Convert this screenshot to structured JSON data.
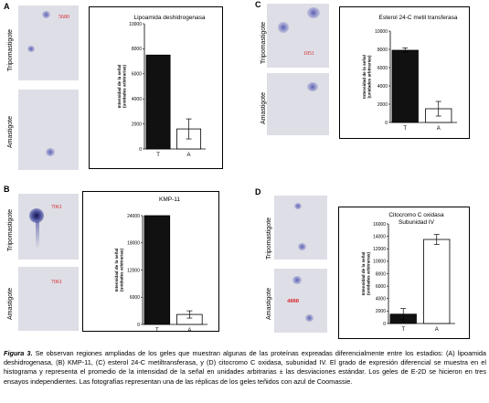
{
  "figure": {
    "caption_label": "Figura 3.",
    "caption_text": "Se observan regiones ampliadas de los geles que muestran algunas de las proteínas expreadas diferencialmente entre los estadios: (A) lipoamida deshidrogenasa, (B) KMP-11, (C) esterol 24-C metiltransferasa, y (D) citocromo C oxidasa, subunidad IV. El grado de expresión diferencial se muestra en el histograma y representa el promedio de la intensidad de la señal en unidades arbitrarias ± las desviaciones estándar. Los geles de E-2D se hicieron en tres ensayos independientes. Las fotografías representan una de las réplicas de los geles teñidos con azul de Coomassie."
  },
  "row_labels": {
    "tripo": "Tripomastigote",
    "ama": "Amastigote"
  },
  "panels": [
    {
      "letter": "A",
      "gel_top_number": "5680",
      "gel_bottom_number": ""
    },
    {
      "letter": "B",
      "gel_top_number": "7061",
      "gel_bottom_number": "7061"
    },
    {
      "letter": "C",
      "gel_top_number": "1851",
      "gel_bottom_number": ""
    },
    {
      "letter": "D",
      "gel_top_number": "",
      "gel_bottom_number": "4888"
    }
  ],
  "chart_data": [
    {
      "type": "bar",
      "title": "Lipoamida deshidrogenasa",
      "ylabel": "Intensidad de la señal (unidades arbitrarias)",
      "categories": [
        "T",
        "A"
      ],
      "values": [
        7500,
        1600
      ],
      "error": [
        0,
        800
      ],
      "ylim": [
        0,
        10000
      ],
      "yticks": [
        "0",
        "2000",
        "4000",
        "6000",
        "8000",
        "10000"
      ],
      "colors": [
        "#111111",
        "#ffffff"
      ]
    },
    {
      "type": "bar",
      "title": "KMP-11",
      "ylabel": "Intensidad de la señal (unidades arbitrarias)",
      "categories": [
        "T",
        "A"
      ],
      "values": [
        24000,
        2200
      ],
      "error": [
        0,
        800
      ],
      "ylim": [
        0,
        24000
      ],
      "yticks": [
        "0",
        "6000",
        "12000",
        "18000",
        "24000"
      ],
      "colors": [
        "#111111",
        "#ffffff"
      ]
    },
    {
      "type": "bar",
      "title": "Esterol 24-C metil transferasa",
      "ylabel": "Intensidad de la señal (unidades arbitrarias)",
      "categories": [
        "T",
        "A"
      ],
      "values": [
        7900,
        1500
      ],
      "error": [
        250,
        800
      ],
      "ylim": [
        0,
        10000
      ],
      "yticks": [
        "0",
        "2000",
        "4000",
        "6000",
        "8000",
        "10000"
      ],
      "colors": [
        "#111111",
        "#ffffff"
      ]
    },
    {
      "type": "bar",
      "title": "Citocromo C oxidasa Subunidad IV",
      "title_lines": [
        "Citocromo C oxidasa",
        "Subunidad IV"
      ],
      "ylabel": "Intensidad de la señal (unidades arbitrarias)",
      "categories": [
        "T",
        "A"
      ],
      "values": [
        1500,
        13500
      ],
      "error": [
        900,
        800
      ],
      "ylim": [
        0,
        16000
      ],
      "yticks": [
        "0",
        "2000",
        "4000",
        "6000",
        "8000",
        "10000",
        "12000",
        "14000",
        "16000"
      ],
      "colors": [
        "#111111",
        "#ffffff"
      ]
    }
  ]
}
